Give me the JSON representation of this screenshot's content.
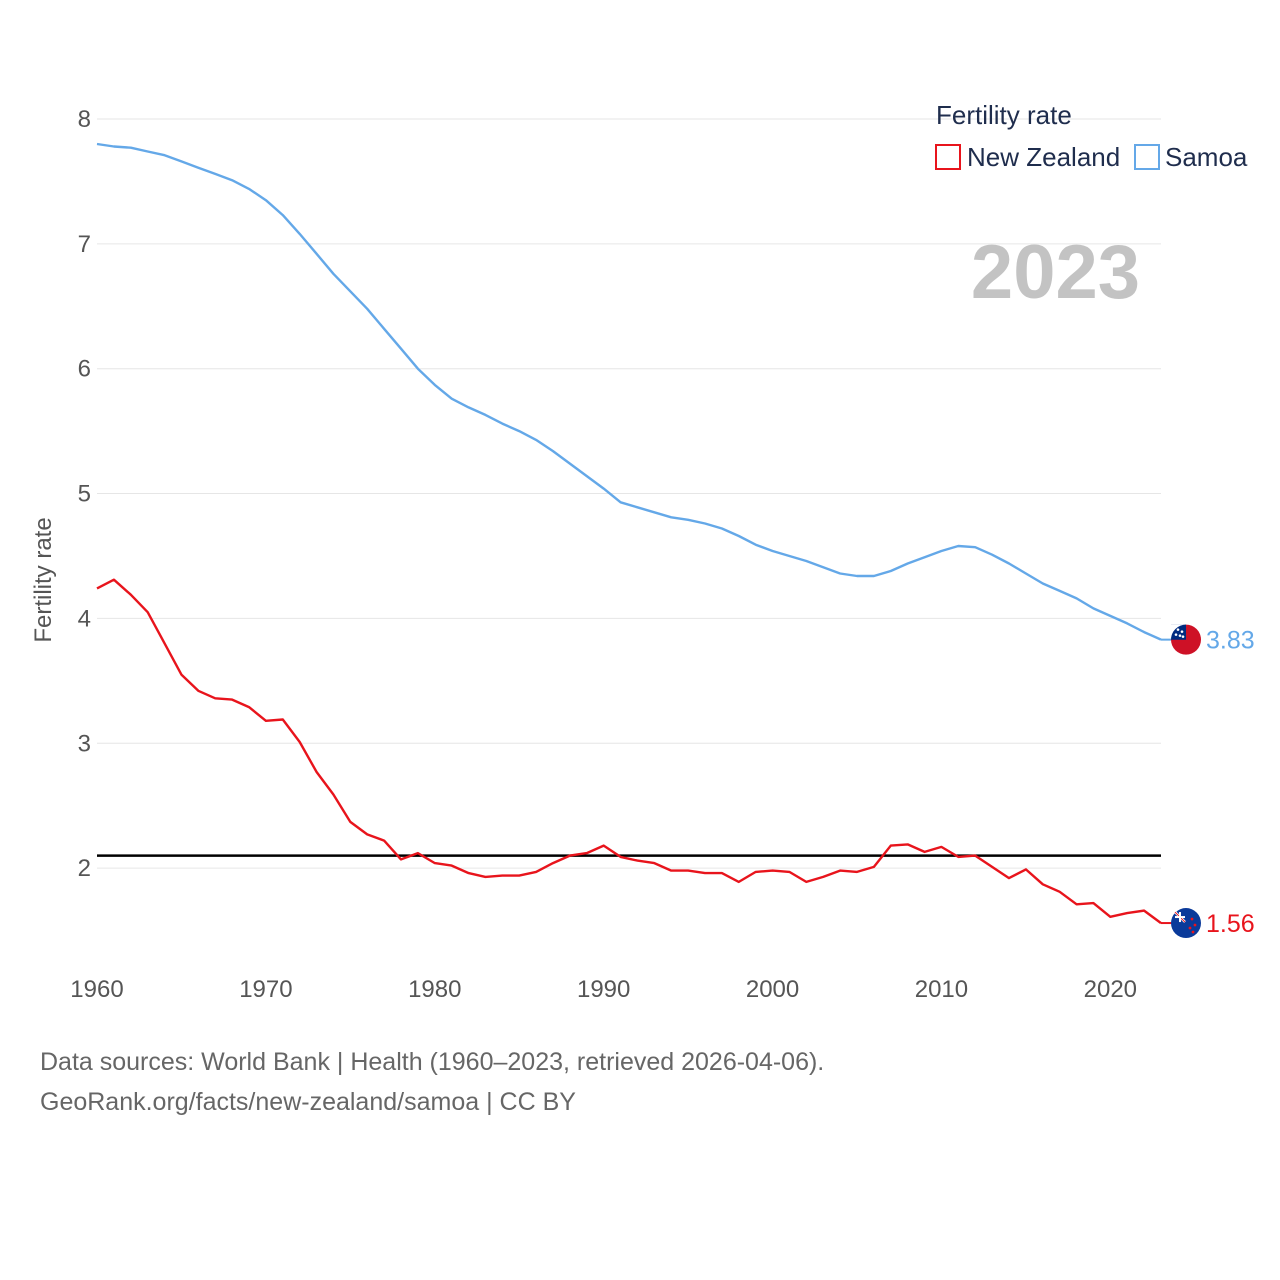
{
  "chart_data": {
    "type": "line",
    "year_label": "2023",
    "ylabel": "Fertility rate",
    "xlabel": "",
    "xlim": [
      1960,
      2023
    ],
    "ylim": [
      1.2,
      8
    ],
    "x_ticks": [
      1960,
      1970,
      1980,
      1990,
      2000,
      2010,
      2020
    ],
    "y_ticks": [
      2,
      3,
      4,
      5,
      6,
      7,
      8
    ],
    "legend": {
      "title": "Fertility rate",
      "placement": "top-right"
    },
    "reference_line": {
      "value": 2.1
    },
    "x": [
      1960,
      1961,
      1962,
      1963,
      1964,
      1965,
      1966,
      1967,
      1968,
      1969,
      1970,
      1971,
      1972,
      1973,
      1974,
      1975,
      1976,
      1977,
      1978,
      1979,
      1980,
      1981,
      1982,
      1983,
      1984,
      1985,
      1986,
      1987,
      1988,
      1989,
      1990,
      1991,
      1992,
      1993,
      1994,
      1995,
      1996,
      1997,
      1998,
      1999,
      2000,
      2001,
      2002,
      2003,
      2004,
      2005,
      2006,
      2007,
      2008,
      2009,
      2010,
      2011,
      2012,
      2013,
      2014,
      2015,
      2016,
      2017,
      2018,
      2019,
      2020,
      2021,
      2022,
      2023
    ],
    "series": [
      {
        "name": "New Zealand",
        "color": "#e8141c",
        "end_label": "1.56",
        "values": [
          4.24,
          4.31,
          4.19,
          4.05,
          3.8,
          3.55,
          3.42,
          3.36,
          3.35,
          3.29,
          3.18,
          3.19,
          3.01,
          2.77,
          2.59,
          2.37,
          2.27,
          2.22,
          2.07,
          2.12,
          2.04,
          2.02,
          1.96,
          1.93,
          1.94,
          1.94,
          1.97,
          2.04,
          2.1,
          2.12,
          2.18,
          2.09,
          2.06,
          2.04,
          1.98,
          1.98,
          1.96,
          1.96,
          1.89,
          1.97,
          1.98,
          1.97,
          1.89,
          1.93,
          1.98,
          1.97,
          2.01,
          2.18,
          2.19,
          2.13,
          2.17,
          2.09,
          2.1,
          2.01,
          1.92,
          1.99,
          1.87,
          1.81,
          1.71,
          1.72,
          1.61,
          1.64,
          1.66,
          1.56
        ]
      },
      {
        "name": "Samoa",
        "color": "#64a8e8",
        "end_label": "3.83",
        "values": [
          7.8,
          7.78,
          7.77,
          7.74,
          7.71,
          7.66,
          7.61,
          7.56,
          7.51,
          7.44,
          7.35,
          7.23,
          7.08,
          6.92,
          6.76,
          6.62,
          6.48,
          6.32,
          6.16,
          6.0,
          5.87,
          5.76,
          5.69,
          5.63,
          5.56,
          5.5,
          5.43,
          5.34,
          5.24,
          5.14,
          5.04,
          4.93,
          4.89,
          4.85,
          4.81,
          4.79,
          4.76,
          4.72,
          4.66,
          4.59,
          4.54,
          4.5,
          4.46,
          4.41,
          4.36,
          4.34,
          4.34,
          4.38,
          4.44,
          4.49,
          4.54,
          4.58,
          4.57,
          4.51,
          4.44,
          4.36,
          4.28,
          4.22,
          4.16,
          4.08,
          4.02,
          3.96,
          3.89,
          3.83
        ]
      }
    ]
  },
  "footer": {
    "sources": "Data sources: World Bank | Health (1960–2023, retrieved 2026-04-06).",
    "credit": "GeoRank.org/facts/new-zealand/samoa | CC BY"
  },
  "icons": {
    "samoa_flag": "samoa-flag-icon",
    "new_zealand_flag": "new-zealand-flag-icon"
  }
}
